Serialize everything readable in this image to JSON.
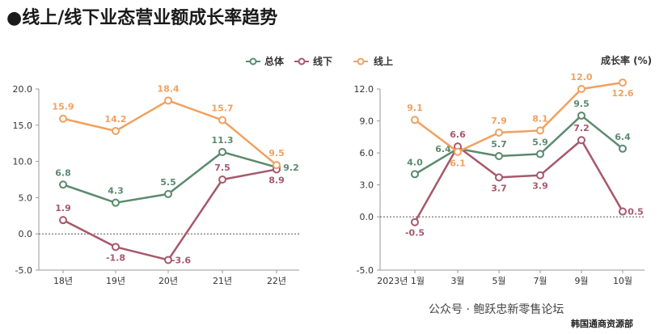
{
  "title": "●线上/线下业态营业额成长率趋势",
  "legend": [
    {
      "label": "总体",
      "color": "#5b8a6e"
    },
    {
      "label": "线下",
      "color": "#a6586c"
    },
    {
      "label": "线上",
      "color": "#f0a160"
    }
  ],
  "unit_label": "成长率 (%)",
  "watermark": "公众号 · 鲍跃忠新零售论坛",
  "source": "韩国通商资源部",
  "chart_data": [
    {
      "type": "line",
      "categories": [
        "18년",
        "19년",
        "20년",
        "21년",
        "22년"
      ],
      "ylim": [
        -5.0,
        20.0
      ],
      "yticks": [
        "20.0",
        "15.0",
        "10.0",
        "5.0",
        "0.0",
        "-5.0"
      ],
      "series": [
        {
          "name": "总体",
          "color": "#5b8a6e",
          "values": [
            6.8,
            4.3,
            5.5,
            11.3,
            9.2
          ],
          "labels": [
            "6.8",
            "4.3",
            "5.5",
            "11.3",
            "9.2"
          ]
        },
        {
          "name": "线下",
          "color": "#a6586c",
          "values": [
            1.9,
            -1.8,
            -3.6,
            7.5,
            8.9
          ],
          "labels": [
            "1.9",
            "-1.8",
            "-3.6",
            "7.5",
            "8.9"
          ]
        },
        {
          "name": "线上",
          "color": "#f0a160",
          "values": [
            15.9,
            14.2,
            18.4,
            15.7,
            9.5
          ],
          "labels": [
            "15.9",
            "14.2",
            "18.4",
            "15.7",
            "9.5"
          ]
        }
      ]
    },
    {
      "type": "line",
      "categories": [
        "2023년 1월",
        "3월",
        "5월",
        "7월",
        "9월",
        "10월"
      ],
      "ylim": [
        -5.0,
        12.0
      ],
      "yticks": [
        "12.0",
        "9.0",
        "6.0",
        "3.0",
        "0.0",
        "-5.0"
      ],
      "series": [
        {
          "name": "总体",
          "color": "#5b8a6e",
          "values": [
            4.0,
            6.4,
            5.7,
            5.9,
            9.5,
            6.4
          ],
          "labels": [
            "4.0",
            "6.4",
            "5.7",
            "5.9",
            "9.5",
            "6.4"
          ]
        },
        {
          "name": "线下",
          "color": "#a6586c",
          "values": [
            -0.5,
            6.6,
            3.7,
            3.9,
            7.2,
            0.5
          ],
          "labels": [
            "-0.5",
            "6.6",
            "3.7",
            "3.9",
            "7.2",
            "0.5"
          ]
        },
        {
          "name": "线上",
          "color": "#f0a160",
          "values": [
            9.1,
            6.1,
            7.9,
            8.1,
            12.0,
            12.6
          ],
          "labels": [
            "9.1",
            "6.1",
            "7.9",
            "8.1",
            "12.0",
            "12.6"
          ]
        }
      ]
    }
  ]
}
